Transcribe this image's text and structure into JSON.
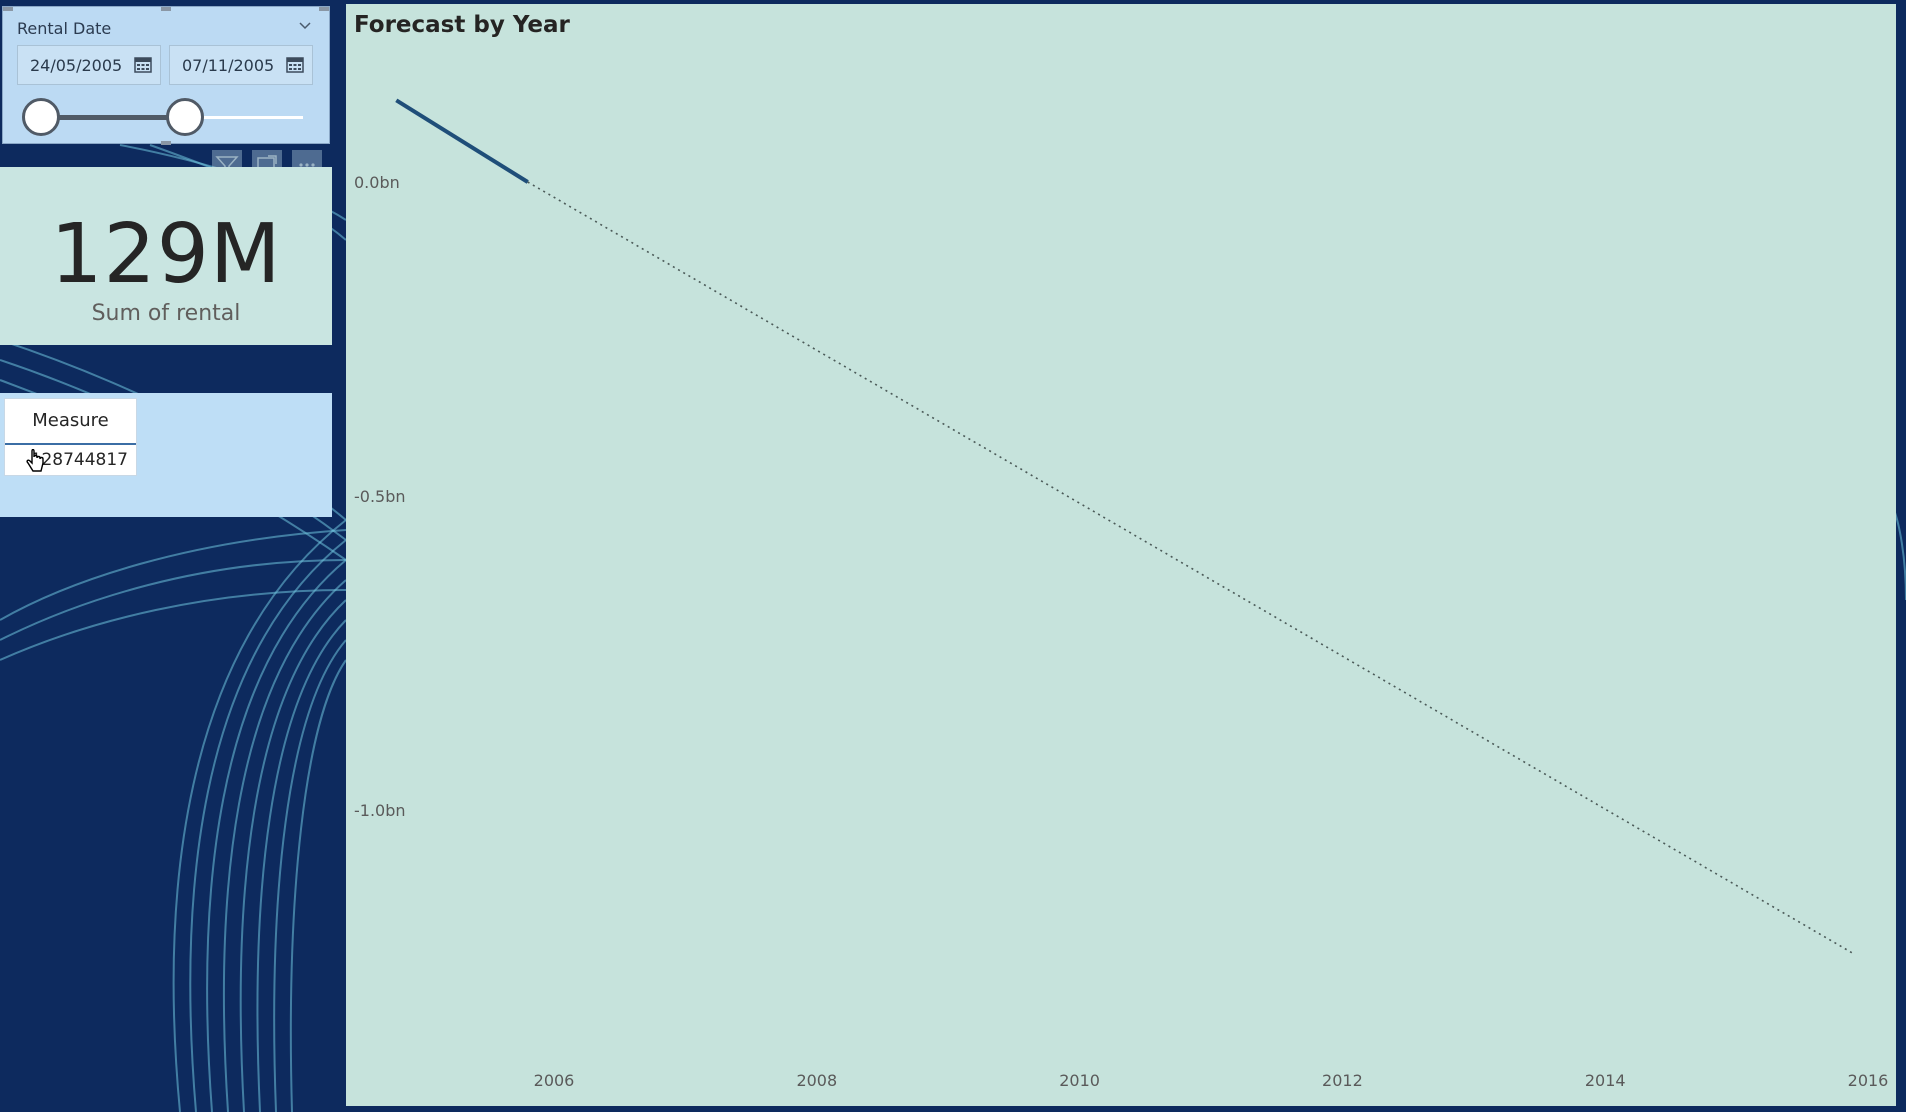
{
  "slicer": {
    "title": "Rental Date",
    "start_date": "24/05/2005",
    "end_date": "07/11/2005",
    "range_fraction": [
      0.0,
      0.55
    ]
  },
  "card": {
    "value": "129M",
    "label": "Sum of rental"
  },
  "table": {
    "header": "Measure",
    "value": "128744817"
  },
  "chart": {
    "title": "Forecast by Year"
  },
  "colors": {
    "background": "#0d2a5e",
    "chart_bg": "#c6e3dc",
    "actual_line": "#1f4e79",
    "forecast_line": "#4b5a58"
  },
  "chart_data": {
    "type": "line",
    "title": "Forecast by Year",
    "xlabel": "",
    "ylabel": "",
    "x_ticks": [
      "2006",
      "2008",
      "2010",
      "2012",
      "2014",
      "2016"
    ],
    "y_ticks": [
      "0.0bn",
      "-0.5bn",
      "-1.0bn"
    ],
    "y_tick_values": [
      0.0,
      -0.5,
      -1.0
    ],
    "xlim": [
      2004.0,
      2016.0
    ],
    "ylim": [
      -1.42,
      0.27
    ],
    "grid": false,
    "series": [
      {
        "style": "solid",
        "x": [
          2004.8,
          2005.8
        ],
        "y": [
          0.13,
          0.0
        ]
      },
      {
        "style": "dotted",
        "x": [
          2005.8,
          2015.9
        ],
        "y": [
          0.0,
          -1.23
        ]
      }
    ]
  },
  "icons": [
    "calendar-icon",
    "chevron-down-icon",
    "filter-icon",
    "focus-mode-icon",
    "more-options-icon",
    "hand-cursor-icon"
  ]
}
